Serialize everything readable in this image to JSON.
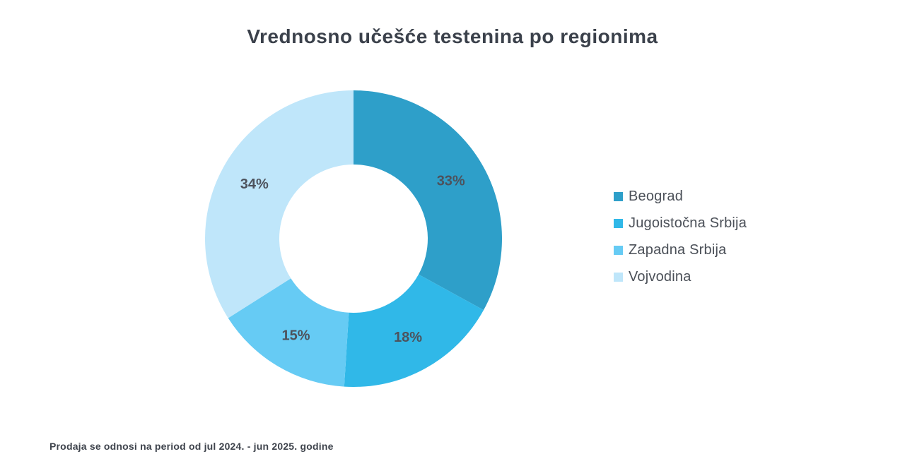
{
  "title": "Vrednosno učešće testenina po regionima",
  "footnote": "Prodaja se odnosi na period od jul 2024. - jun 2025. godine",
  "chart_data": {
    "type": "pie",
    "subtype": "donut",
    "title": "Vrednosno učešće testenina po regionima",
    "categories": [
      "Beograd",
      "Jugoistočna Srbija",
      "Zapadna Srbija",
      "Vojvodina"
    ],
    "values": [
      33,
      18,
      15,
      34
    ],
    "labels": [
      "33%",
      "18%",
      "15%",
      "34%"
    ],
    "unit": "%",
    "colors": [
      "#2E9FC9",
      "#30B8E8",
      "#66CBF4",
      "#BFE6FA"
    ],
    "legend_position": "right",
    "start_angle_deg": 0,
    "direction": "clockwise",
    "inner_radius_ratio": 0.5,
    "label_color": "#4d525c"
  }
}
